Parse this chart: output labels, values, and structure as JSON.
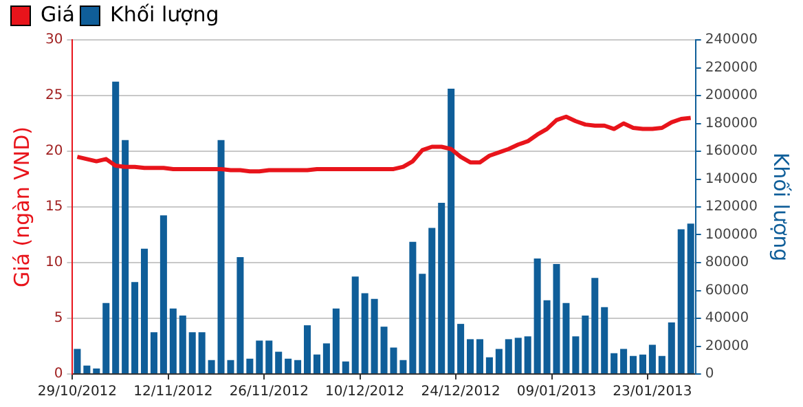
{
  "chart_data": {
    "type": "bar",
    "ylabel": "Giá (ngàn VND)",
    "y2label": "Khối lượng",
    "categories": [
      "29/10/2012",
      null,
      null,
      null,
      null,
      null,
      null,
      null,
      null,
      null,
      "12/11/2012",
      null,
      null,
      null,
      null,
      null,
      null,
      null,
      null,
      null,
      "26/11/2012",
      null,
      null,
      null,
      null,
      null,
      null,
      null,
      null,
      null,
      "10/12/2012",
      null,
      null,
      null,
      null,
      null,
      null,
      null,
      null,
      null,
      "24/12/2012",
      null,
      null,
      null,
      null,
      null,
      null,
      null,
      null,
      null,
      "09/01/2013",
      null,
      null,
      null,
      null,
      null,
      null,
      null,
      null,
      null,
      "23/01/2013",
      null,
      null,
      null,
      null
    ],
    "series": [
      {
        "name": "Giá",
        "type": "line",
        "axis": "y",
        "color": "#e8141b",
        "values": [
          19.5,
          19.3,
          19.1,
          19.3,
          18.7,
          18.6,
          18.6,
          18.5,
          18.5,
          18.5,
          18.4,
          18.4,
          18.4,
          18.4,
          18.4,
          18.4,
          18.3,
          18.3,
          18.2,
          18.2,
          18.3,
          18.3,
          18.3,
          18.3,
          18.3,
          18.4,
          18.4,
          18.4,
          18.4,
          18.4,
          18.4,
          18.4,
          18.4,
          18.4,
          18.6,
          19.1,
          20.1,
          20.4,
          20.4,
          20.2,
          19.5,
          19.0,
          19.0,
          19.6,
          19.9,
          20.2,
          20.6,
          20.9,
          21.5,
          22.0,
          22.8,
          23.1,
          22.7,
          22.4,
          22.3,
          22.3,
          22.0,
          22.5,
          22.1,
          22.0,
          22.0,
          22.1,
          22.6,
          22.9,
          23.0
        ]
      },
      {
        "name": "Khối lượng",
        "type": "bar",
        "axis": "y2",
        "color": "#0f5e99",
        "values": [
          18000,
          6000,
          4000,
          51000,
          210000,
          168000,
          66000,
          90000,
          30000,
          114000,
          47000,
          42000,
          30000,
          30000,
          10000,
          168000,
          10000,
          84000,
          11000,
          24000,
          24000,
          16000,
          11000,
          10000,
          35000,
          14000,
          22000,
          47000,
          9000,
          70000,
          58000,
          54000,
          34000,
          19000,
          10000,
          95000,
          72000,
          105000,
          123000,
          205000,
          36000,
          25000,
          25000,
          12000,
          18000,
          25000,
          26000,
          27000,
          83000,
          53000,
          79000,
          51000,
          27000,
          42000,
          69000,
          48000,
          15000,
          18000,
          13000,
          14000,
          21000,
          13000,
          37000,
          104000,
          108000
        ]
      }
    ],
    "ylim": [
      0,
      30
    ],
    "yticks": [
      0,
      5,
      10,
      15,
      20,
      25,
      30
    ],
    "y2lim": [
      0,
      240000
    ],
    "y2ticks": [
      0,
      20000,
      40000,
      60000,
      80000,
      100000,
      120000,
      140000,
      160000,
      180000,
      200000,
      220000,
      240000
    ],
    "grid": "y",
    "legend": "top left",
    "marker": "none",
    "line_style": "solid"
  }
}
